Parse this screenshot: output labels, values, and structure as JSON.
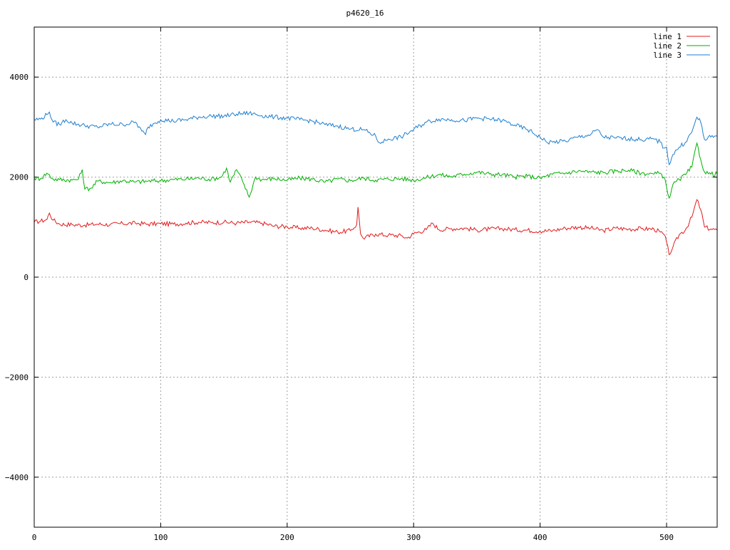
{
  "chart_data": {
    "type": "line",
    "title": "p4620_16",
    "xlabel": "",
    "ylabel": "",
    "xlim": [
      0,
      540
    ],
    "ylim": [
      -5000,
      5000
    ],
    "xticks": [
      0,
      100,
      200,
      300,
      400,
      500
    ],
    "yticks": [
      -4000,
      -2000,
      0,
      2000,
      4000
    ],
    "grid": true,
    "legend_position": "top-right",
    "colors": {
      "line 1": "#e41a1c",
      "line 2": "#00b000",
      "line 3": "#1f7fd0",
      "grid": "#a0a0a0",
      "frame": "#000000"
    },
    "series": [
      {
        "name": "line 1",
        "x": [
          0,
          5,
          10,
          12,
          15,
          20,
          30,
          40,
          50,
          60,
          70,
          80,
          90,
          100,
          110,
          120,
          130,
          140,
          150,
          160,
          170,
          180,
          190,
          200,
          210,
          220,
          230,
          240,
          250,
          255,
          256,
          258,
          260,
          270,
          280,
          290,
          295,
          300,
          310,
          315,
          320,
          330,
          340,
          350,
          360,
          370,
          380,
          390,
          400,
          410,
          420,
          430,
          440,
          450,
          460,
          470,
          480,
          490,
          495,
          498,
          500,
          502,
          505,
          510,
          515,
          520,
          524,
          527,
          530,
          535,
          540
        ],
        "y": [
          1100,
          1120,
          1150,
          1280,
          1140,
          1060,
          1050,
          1040,
          1060,
          1050,
          1070,
          1080,
          1060,
          1070,
          1060,
          1080,
          1100,
          1090,
          1100,
          1080,
          1100,
          1080,
          1020,
          1010,
          980,
          980,
          940,
          900,
          930,
          1050,
          1400,
          870,
          780,
          860,
          840,
          830,
          780,
          870,
          950,
          1080,
          950,
          970,
          980,
          940,
          960,
          970,
          950,
          940,
          920,
          930,
          980,
          1000,
          980,
          930,
          980,
          960,
          970,
          960,
          900,
          850,
          700,
          450,
          600,
          850,
          950,
          1200,
          1550,
          1350,
          1000,
          960,
          940
        ]
      },
      {
        "name": "line 2",
        "x": [
          0,
          5,
          10,
          15,
          20,
          30,
          35,
          38,
          40,
          45,
          50,
          60,
          70,
          80,
          90,
          100,
          110,
          120,
          130,
          140,
          148,
          152,
          155,
          160,
          165,
          170,
          175,
          180,
          190,
          200,
          210,
          220,
          230,
          240,
          250,
          260,
          270,
          280,
          290,
          300,
          310,
          320,
          330,
          340,
          350,
          360,
          370,
          380,
          390,
          400,
          410,
          420,
          430,
          440,
          450,
          460,
          470,
          480,
          490,
          495,
          498,
          500,
          502,
          505,
          510,
          515,
          520,
          524,
          527,
          530,
          535,
          540
        ],
        "y": [
          1980,
          1970,
          2080,
          1960,
          1950,
          1940,
          1960,
          2150,
          1760,
          1780,
          1920,
          1890,
          1930,
          1900,
          1920,
          1930,
          1950,
          1960,
          1980,
          1960,
          2000,
          2180,
          1900,
          2150,
          1900,
          1600,
          2000,
          1950,
          1970,
          1940,
          1980,
          1960,
          1900,
          1960,
          1930,
          1980,
          1940,
          1960,
          1970,
          1940,
          1990,
          2050,
          2010,
          2060,
          2100,
          2060,
          2050,
          2000,
          2020,
          1980,
          2060,
          2080,
          2120,
          2100,
          2090,
          2120,
          2140,
          2080,
          2060,
          2080,
          2000,
          1800,
          1580,
          1850,
          1950,
          2050,
          2200,
          2680,
          2350,
          2100,
          2060,
          2060
        ]
      },
      {
        "name": "line 3",
        "x": [
          0,
          5,
          10,
          12,
          15,
          20,
          25,
          30,
          40,
          50,
          60,
          70,
          80,
          85,
          88,
          90,
          95,
          100,
          110,
          120,
          130,
          140,
          150,
          160,
          170,
          180,
          190,
          200,
          210,
          220,
          230,
          240,
          250,
          260,
          270,
          272,
          275,
          280,
          290,
          300,
          310,
          320,
          330,
          340,
          350,
          360,
          370,
          380,
          390,
          400,
          405,
          410,
          420,
          430,
          440,
          445,
          450,
          460,
          470,
          480,
          490,
          495,
          498,
          500,
          502,
          505,
          510,
          515,
          520,
          524,
          527,
          530,
          535,
          540
        ],
        "y": [
          3150,
          3160,
          3250,
          3300,
          3100,
          3050,
          3150,
          3080,
          3030,
          3000,
          3060,
          3050,
          3100,
          2920,
          2850,
          3000,
          3080,
          3150,
          3120,
          3150,
          3200,
          3220,
          3220,
          3260,
          3280,
          3230,
          3200,
          3180,
          3150,
          3120,
          3050,
          3020,
          2960,
          2950,
          2820,
          2700,
          2700,
          2760,
          2800,
          2950,
          3100,
          3160,
          3150,
          3130,
          3180,
          3160,
          3130,
          3040,
          2950,
          2800,
          2700,
          2700,
          2720,
          2800,
          2850,
          2950,
          2800,
          2780,
          2770,
          2750,
          2760,
          2700,
          2580,
          2600,
          2250,
          2450,
          2600,
          2700,
          2900,
          3200,
          3100,
          2750,
          2800,
          2820
        ]
      }
    ]
  }
}
